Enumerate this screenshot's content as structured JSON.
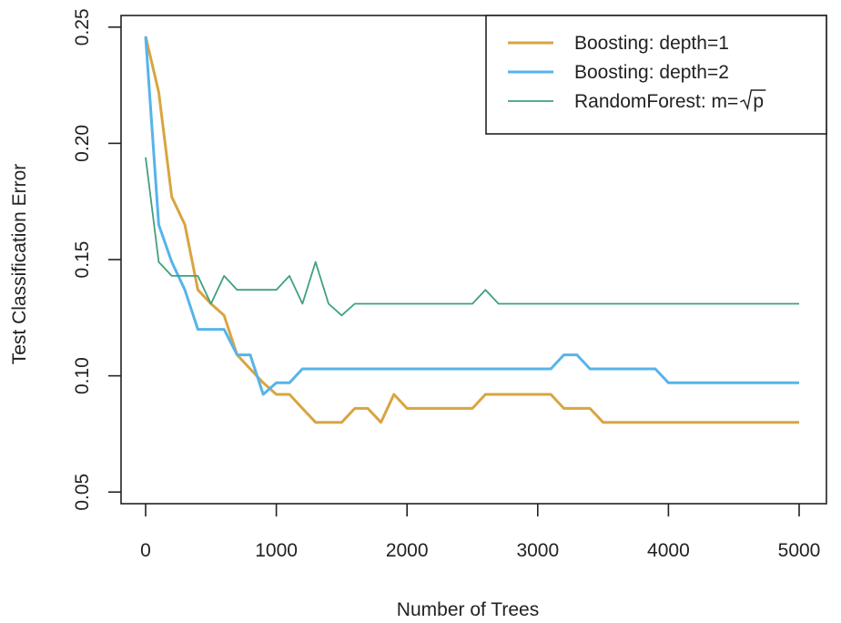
{
  "chart_data": {
    "type": "line",
    "xlabel": "Number of Trees",
    "ylabel": "Test Classification Error",
    "xlim": [
      0,
      5000
    ],
    "ylim": [
      0.045,
      0.255
    ],
    "xticks": [
      0,
      1000,
      2000,
      3000,
      4000,
      5000
    ],
    "yticks": [
      0.05,
      0.1,
      0.15,
      0.2,
      0.25
    ],
    "xtick_labels": [
      "0",
      "1000",
      "2000",
      "3000",
      "4000",
      "5000"
    ],
    "ytick_labels": [
      "0.05",
      "0.10",
      "0.15",
      "0.20",
      "0.25"
    ],
    "legend_position": "top-right",
    "grid": false,
    "series": [
      {
        "name": "Boosting: depth=1",
        "color": "#D9A441",
        "width": 3,
        "points": [
          [
            0,
            0.246
          ],
          [
            100,
            0.222
          ],
          [
            200,
            0.177
          ],
          [
            300,
            0.165
          ],
          [
            400,
            0.137
          ],
          [
            500,
            0.131
          ],
          [
            600,
            0.126
          ],
          [
            700,
            0.109
          ],
          [
            800,
            0.103
          ],
          [
            900,
            0.097
          ],
          [
            1000,
            0.092
          ],
          [
            1100,
            0.092
          ],
          [
            1200,
            0.086
          ],
          [
            1300,
            0.08
          ],
          [
            1400,
            0.08
          ],
          [
            1500,
            0.08
          ],
          [
            1600,
            0.086
          ],
          [
            1700,
            0.086
          ],
          [
            1800,
            0.08
          ],
          [
            1900,
            0.092
          ],
          [
            2000,
            0.086
          ],
          [
            2500,
            0.086
          ],
          [
            2600,
            0.092
          ],
          [
            3100,
            0.092
          ],
          [
            3200,
            0.086
          ],
          [
            3400,
            0.086
          ],
          [
            3500,
            0.08
          ],
          [
            5000,
            0.08
          ]
        ]
      },
      {
        "name": "Boosting: depth=2",
        "color": "#56B4E9",
        "width": 3,
        "points": [
          [
            0,
            0.246
          ],
          [
            100,
            0.165
          ],
          [
            200,
            0.149
          ],
          [
            300,
            0.137
          ],
          [
            400,
            0.12
          ],
          [
            500,
            0.12
          ],
          [
            600,
            0.12
          ],
          [
            700,
            0.109
          ],
          [
            800,
            0.109
          ],
          [
            900,
            0.092
          ],
          [
            1000,
            0.097
          ],
          [
            1100,
            0.097
          ],
          [
            1200,
            0.103
          ],
          [
            3100,
            0.103
          ],
          [
            3200,
            0.109
          ],
          [
            3300,
            0.109
          ],
          [
            3400,
            0.103
          ],
          [
            3900,
            0.103
          ],
          [
            4000,
            0.097
          ],
          [
            5000,
            0.097
          ]
        ]
      },
      {
        "name": "RandomForest: m=√p",
        "label_prefix": "RandomForest: m=",
        "label_sqrt_arg": "p",
        "color": "#3FA080",
        "width": 1.8,
        "points": [
          [
            0,
            0.194
          ],
          [
            100,
            0.149
          ],
          [
            200,
            0.143
          ],
          [
            300,
            0.143
          ],
          [
            400,
            0.143
          ],
          [
            500,
            0.131
          ],
          [
            600,
            0.143
          ],
          [
            700,
            0.137
          ],
          [
            800,
            0.137
          ],
          [
            900,
            0.137
          ],
          [
            1000,
            0.137
          ],
          [
            1100,
            0.143
          ],
          [
            1200,
            0.131
          ],
          [
            1300,
            0.149
          ],
          [
            1400,
            0.131
          ],
          [
            1500,
            0.126
          ],
          [
            1600,
            0.131
          ],
          [
            2500,
            0.131
          ],
          [
            2600,
            0.137
          ],
          [
            2700,
            0.131
          ],
          [
            5000,
            0.131
          ]
        ]
      }
    ]
  }
}
